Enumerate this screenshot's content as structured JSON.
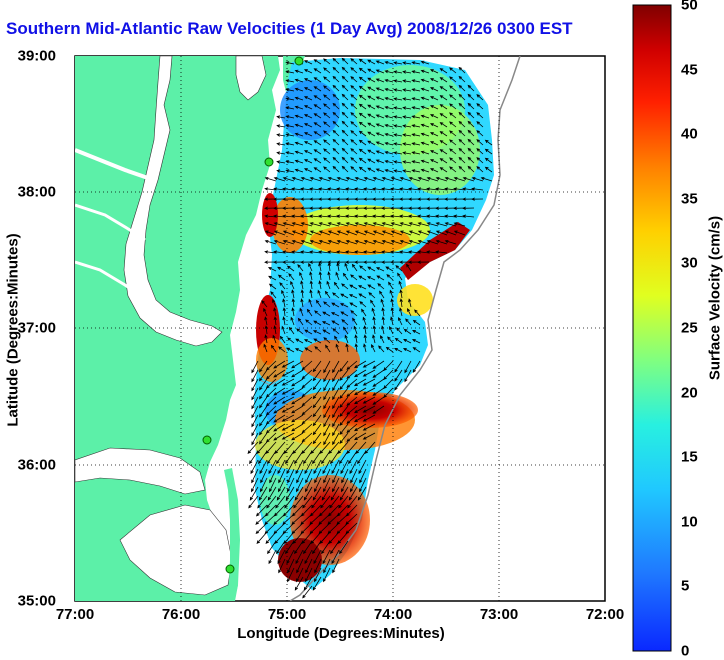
{
  "title": "Southern Mid-Atlantic Raw Velocities (1 Day Avg) 2008/12/26 0300 EST",
  "xlabel": "Longitude (Degrees:Minutes)",
  "ylabel": "Latitude (Degrees:Minutes)",
  "colorbar": {
    "label": "Surface Velocity (cm/s)",
    "min": 0,
    "max": 50,
    "ticks": [
      "0",
      "5",
      "10",
      "15",
      "20",
      "25",
      "30",
      "35",
      "40",
      "45",
      "50"
    ],
    "colormap": "jet"
  },
  "map": {
    "x_ticks": [
      "77:00",
      "76:00",
      "75:00",
      "74:00",
      "73:00",
      "72:00"
    ],
    "y_ticks": [
      "39:00",
      "38:00",
      "37:00",
      "36:00",
      "35:00"
    ],
    "lon_range": [
      -77,
      -72
    ],
    "lat_range": [
      35,
      39
    ],
    "grid": "dotted",
    "land_color": "#5cf0a8",
    "stations": 4
  }
}
